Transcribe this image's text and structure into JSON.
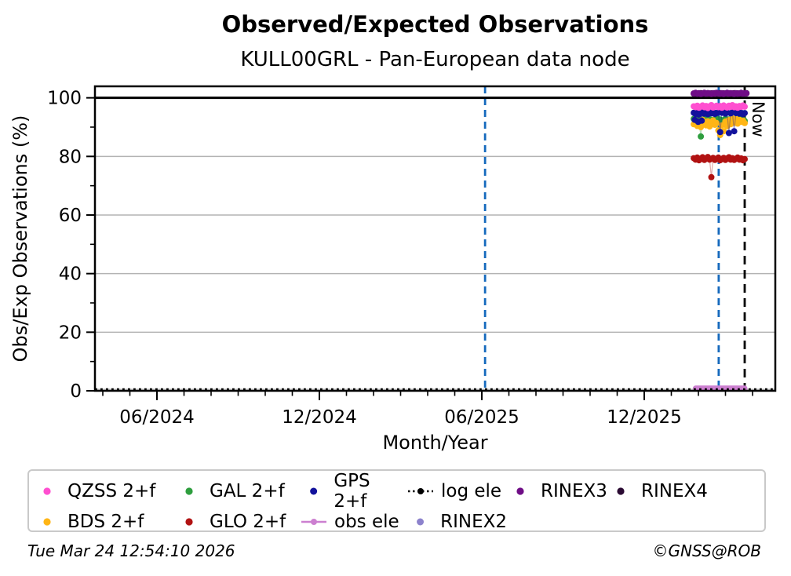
{
  "header": {
    "title": "Observed/Expected Observations",
    "subtitle": "KULL00GRL - Pan-European data node"
  },
  "footer": {
    "timestamp": "Tue Mar 24 12:54:10 2026",
    "copyright": "©GNSS@ROB"
  },
  "chart_data": {
    "type": "scatter",
    "title": "Observed/Expected Observations",
    "subtitle": "KULL00GRL - Pan-European data node",
    "xlabel": "Month/Year",
    "ylabel": "Obs/Exp Observations (%)",
    "x_tick_labels": [
      "06/2024",
      "12/2024",
      "06/2025",
      "12/2025"
    ],
    "x_tick_months": [
      0,
      6,
      12,
      18
    ],
    "x_minor_month_range": [
      -2,
      22
    ],
    "xlim_months": [
      -2.29,
      22.84
    ],
    "y_ticks": [
      0,
      20,
      40,
      60,
      80,
      100
    ],
    "y_minor_ticks": [
      10,
      30,
      50,
      70,
      90
    ],
    "ylim": [
      0,
      103.9
    ],
    "grid_y": [
      20,
      40,
      60,
      80
    ],
    "grid_color": "#b3b3b3",
    "legend_position": "below",
    "reference_line": {
      "y": 100,
      "color": "#000000",
      "style": "solid"
    },
    "vlines": [
      {
        "name": "event-line-jun-2025",
        "month": 12.12,
        "color": "#1569bd",
        "style": "dashed"
      },
      {
        "name": "event-line-feb-2026",
        "month": 20.75,
        "color": "#1569bd",
        "style": "dashed"
      },
      {
        "name": "now-line",
        "month": 21.71,
        "color": "#000000",
        "style": "dashed",
        "label": "Now"
      }
    ],
    "now_label": "Now",
    "data_window": {
      "start_month_offset_from_jun2024": 19.83,
      "end_month_offset_from_jun2024": 21.71,
      "span_days": 58
    },
    "zero_lines": {
      "log_ele": {
        "label": "log ele",
        "color": "#000000",
        "style": "dotted",
        "y": 0,
        "span": "full-axis"
      },
      "obs_ele": {
        "label": "obs ele",
        "color": "#cc7fd0",
        "style": "thick",
        "y": 0,
        "start_day": 2,
        "end_day": 58
      }
    },
    "series": [
      {
        "name": "GAL 2+f",
        "color": "#2e9e3e",
        "points": [
          [
            0,
            92.8
          ],
          [
            2,
            92.3
          ],
          [
            4,
            93.0
          ],
          [
            6,
            92.1
          ],
          [
            8,
            86.8
          ],
          [
            10,
            92.6
          ],
          [
            12,
            92.0
          ],
          [
            14,
            92.9
          ],
          [
            16,
            92.3
          ],
          [
            18,
            92.7
          ],
          [
            20,
            91.9
          ],
          [
            22,
            92.5
          ],
          [
            24,
            92.1
          ],
          [
            26,
            92.8
          ],
          [
            28,
            92.2
          ],
          [
            30,
            92.6
          ],
          [
            32,
            91.8
          ],
          [
            34,
            92.4
          ],
          [
            36,
            92.9
          ],
          [
            38,
            92.2
          ],
          [
            40,
            92.6
          ],
          [
            42,
            91.9
          ],
          [
            44,
            92.3
          ],
          [
            46,
            92.7
          ],
          [
            48,
            92.0
          ],
          [
            50,
            92.5
          ],
          [
            52,
            92.9
          ],
          [
            54,
            92.2
          ],
          [
            56,
            92.6
          ],
          [
            58,
            92.1
          ]
        ]
      },
      {
        "name": "BDS 2+f",
        "color": "#ffb515",
        "points": [
          [
            0,
            91.0
          ],
          [
            2,
            92.2
          ],
          [
            4,
            90.4
          ],
          [
            6,
            91.8
          ],
          [
            8,
            90.0
          ],
          [
            10,
            92.5
          ],
          [
            12,
            91.2
          ],
          [
            14,
            90.6
          ],
          [
            16,
            92.0
          ],
          [
            18,
            90.2
          ],
          [
            20,
            91.6
          ],
          [
            22,
            92.3
          ],
          [
            24,
            90.8
          ],
          [
            26,
            91.4
          ],
          [
            28,
            88.9
          ],
          [
            30,
            87.3
          ],
          [
            32,
            90.6
          ],
          [
            34,
            88.6
          ],
          [
            36,
            91.9
          ],
          [
            38,
            90.3
          ],
          [
            40,
            92.4
          ],
          [
            42,
            91.0
          ],
          [
            44,
            93.0
          ],
          [
            46,
            91.5
          ],
          [
            48,
            92.8
          ],
          [
            50,
            91.2
          ],
          [
            52,
            92.5
          ],
          [
            54,
            91.8
          ],
          [
            56,
            92.2
          ],
          [
            58,
            91.4
          ]
        ]
      },
      {
        "name": "GPS 2+f",
        "color": "#12129c",
        "points": [
          [
            0,
            94.9
          ],
          [
            1,
            92.5
          ],
          [
            2,
            94.5
          ],
          [
            4,
            95.1
          ],
          [
            5,
            91.8
          ],
          [
            6,
            94.3
          ],
          [
            8,
            94.8
          ],
          [
            9,
            92.2
          ],
          [
            10,
            95.2
          ],
          [
            12,
            94.6
          ],
          [
            14,
            94.9
          ],
          [
            16,
            94.4
          ],
          [
            18,
            95.0
          ],
          [
            20,
            94.7
          ],
          [
            22,
            95.2
          ],
          [
            24,
            94.5
          ],
          [
            26,
            94.8
          ],
          [
            28,
            95.1
          ],
          [
            30,
            88.3
          ],
          [
            32,
            94.9
          ],
          [
            34,
            95.2
          ],
          [
            36,
            94.6
          ],
          [
            38,
            95.0
          ],
          [
            40,
            88.0
          ],
          [
            42,
            94.7
          ],
          [
            44,
            95.1
          ],
          [
            46,
            88.6
          ],
          [
            48,
            94.8
          ],
          [
            50,
            95.2
          ],
          [
            52,
            94.6
          ],
          [
            54,
            94.9
          ],
          [
            56,
            94.4
          ],
          [
            58,
            94.8
          ]
        ]
      },
      {
        "name": "QZSS 2+f",
        "color": "#ff4fd0",
        "points": [
          [
            0,
            97.1
          ],
          [
            2,
            96.8
          ],
          [
            4,
            97.3
          ],
          [
            6,
            96.6
          ],
          [
            8,
            97.0
          ],
          [
            10,
            97.4
          ],
          [
            12,
            96.8
          ],
          [
            14,
            97.2
          ],
          [
            16,
            96.5
          ],
          [
            18,
            97.1
          ],
          [
            20,
            97.5
          ],
          [
            22,
            96.7
          ],
          [
            24,
            97.0
          ],
          [
            26,
            97.3
          ],
          [
            28,
            96.8
          ],
          [
            30,
            97.2
          ],
          [
            32,
            96.6
          ],
          [
            34,
            97.4
          ],
          [
            36,
            97.0
          ],
          [
            38,
            96.7
          ],
          [
            40,
            97.3
          ],
          [
            42,
            96.9
          ],
          [
            44,
            97.5
          ],
          [
            46,
            96.8
          ],
          [
            48,
            97.1
          ],
          [
            50,
            96.6
          ],
          [
            52,
            97.2
          ],
          [
            54,
            96.9
          ],
          [
            56,
            97.4
          ],
          [
            58,
            97.0
          ]
        ]
      },
      {
        "name": "GLO 2+f",
        "color": "#b11212",
        "points": [
          [
            0,
            79.4
          ],
          [
            2,
            78.9
          ],
          [
            4,
            79.6
          ],
          [
            6,
            78.7
          ],
          [
            8,
            79.2
          ],
          [
            10,
            79.7
          ],
          [
            12,
            78.8
          ],
          [
            14,
            79.3
          ],
          [
            16,
            79.8
          ],
          [
            18,
            78.9
          ],
          [
            20,
            72.9
          ],
          [
            22,
            79.5
          ],
          [
            24,
            78.8
          ],
          [
            26,
            79.2
          ],
          [
            28,
            79.6
          ],
          [
            30,
            78.7
          ],
          [
            32,
            79.1
          ],
          [
            34,
            79.5
          ],
          [
            36,
            78.8
          ],
          [
            38,
            79.3
          ],
          [
            40,
            79.7
          ],
          [
            42,
            78.9
          ],
          [
            44,
            79.4
          ],
          [
            46,
            78.8
          ],
          [
            48,
            79.2
          ],
          [
            50,
            79.6
          ],
          [
            52,
            78.9
          ],
          [
            54,
            79.3
          ],
          [
            56,
            78.7
          ],
          [
            58,
            79.1
          ]
        ]
      },
      {
        "name": "RINEX4",
        "color": "#2b0b33",
        "points": [
          [
            0,
            101.4
          ],
          [
            2,
            101.6
          ],
          [
            4,
            101.3
          ],
          [
            6,
            101.5
          ],
          [
            8,
            101.6
          ],
          [
            10,
            101.3
          ],
          [
            12,
            101.5
          ],
          [
            14,
            101.4
          ],
          [
            16,
            101.6
          ],
          [
            18,
            101.4
          ],
          [
            20,
            101.5
          ],
          [
            22,
            101.3
          ],
          [
            24,
            101.6
          ],
          [
            26,
            101.4
          ],
          [
            28,
            101.5
          ],
          [
            30,
            101.6
          ],
          [
            32,
            101.3
          ],
          [
            34,
            101.5
          ],
          [
            36,
            101.4
          ],
          [
            38,
            101.6
          ],
          [
            40,
            101.5
          ],
          [
            42,
            101.3
          ],
          [
            44,
            101.5
          ],
          [
            46,
            101.6
          ],
          [
            48,
            101.4
          ],
          [
            50,
            101.5
          ],
          [
            52,
            101.3
          ],
          [
            54,
            101.6
          ],
          [
            56,
            101.4
          ],
          [
            58,
            101.5
          ],
          [
            60,
            101.6
          ]
        ]
      },
      {
        "name": "RINEX3",
        "color": "#6f0d86",
        "points": [
          [
            0,
            101.5
          ],
          [
            2,
            101.7
          ],
          [
            4,
            101.4
          ],
          [
            6,
            101.6
          ],
          [
            8,
            101.3
          ],
          [
            10,
            101.5
          ],
          [
            12,
            101.7
          ],
          [
            14,
            101.4
          ],
          [
            16,
            101.6
          ],
          [
            18,
            101.5
          ],
          [
            20,
            101.3
          ],
          [
            22,
            101.6
          ],
          [
            24,
            101.4
          ],
          [
            26,
            101.7
          ],
          [
            28,
            101.5
          ],
          [
            30,
            101.4
          ],
          [
            32,
            101.6
          ],
          [
            34,
            101.3
          ],
          [
            36,
            101.5
          ],
          [
            38,
            101.7
          ],
          [
            40,
            101.4
          ],
          [
            42,
            101.6
          ],
          [
            44,
            101.5
          ],
          [
            46,
            101.3
          ],
          [
            48,
            101.6
          ],
          [
            50,
            101.4
          ],
          [
            52,
            101.5
          ],
          [
            54,
            101.7
          ],
          [
            56,
            101.4
          ],
          [
            58,
            101.6
          ],
          [
            60,
            101.5
          ]
        ]
      }
    ]
  },
  "legend": {
    "rows": [
      [
        {
          "label": "QZSS 2+f",
          "color": "#ff4fd0",
          "marker": "dot"
        },
        {
          "label": "GAL 2+f",
          "color": "#2e9e3e",
          "marker": "dot"
        },
        {
          "label": "GPS 2+f",
          "color": "#12129c",
          "marker": "dot"
        },
        {
          "label": "log ele",
          "color": "#000000",
          "marker": "dotted-line"
        },
        {
          "label": "RINEX3",
          "color": "#6f0d86",
          "marker": "dot"
        },
        {
          "label": "RINEX4",
          "color": "#2b0b33",
          "marker": "dot"
        }
      ],
      [
        {
          "label": "BDS 2+f",
          "color": "#ffb515",
          "marker": "dot"
        },
        {
          "label": "GLO 2+f",
          "color": "#b11212",
          "marker": "dot"
        },
        {
          "label": "obs ele",
          "color": "#cc7fd0",
          "marker": "line-dot"
        },
        {
          "label": "RINEX2",
          "color": "#8c82cc",
          "marker": "dot"
        }
      ]
    ]
  }
}
